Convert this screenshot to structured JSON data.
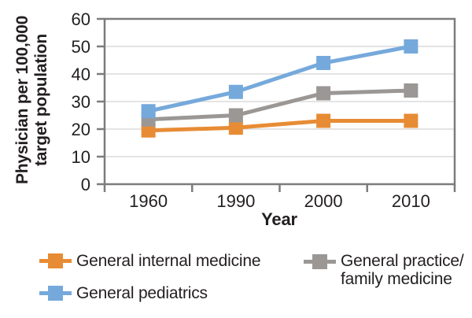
{
  "colors": {
    "background": "#ffffff",
    "axis": "#7c7c7c",
    "gridline": "#dcdcdc",
    "text": "#231f20"
  },
  "chart_data": {
    "type": "line",
    "title": "",
    "xlabel": "Year",
    "ylabel": "Physician per 100,000\ntarget population",
    "x_categories": [
      "1960",
      "1990",
      "2000",
      "2010"
    ],
    "y_ticks": [
      0,
      10,
      20,
      30,
      40,
      50,
      60
    ],
    "ylim": [
      0,
      60
    ],
    "grid": "horizontal",
    "marker": "square",
    "legend_position": "bottom",
    "series": [
      {
        "name": "General internal medicine",
        "color": "#e78c35",
        "values": [
          19.5,
          20.5,
          23,
          23
        ]
      },
      {
        "name": "General practice/family medicine",
        "color": "#9b9795",
        "values": [
          23.5,
          25,
          33,
          34
        ]
      },
      {
        "name": "General pediatrics",
        "color": "#76a9db",
        "values": [
          26.5,
          33.5,
          44,
          50
        ]
      }
    ]
  },
  "legend": {
    "items": [
      {
        "label": "General internal medicine",
        "series": 0
      },
      {
        "label": "General practice/\nfamily medicine",
        "series": 1
      },
      {
        "label": "General pediatrics",
        "series": 2
      }
    ]
  }
}
